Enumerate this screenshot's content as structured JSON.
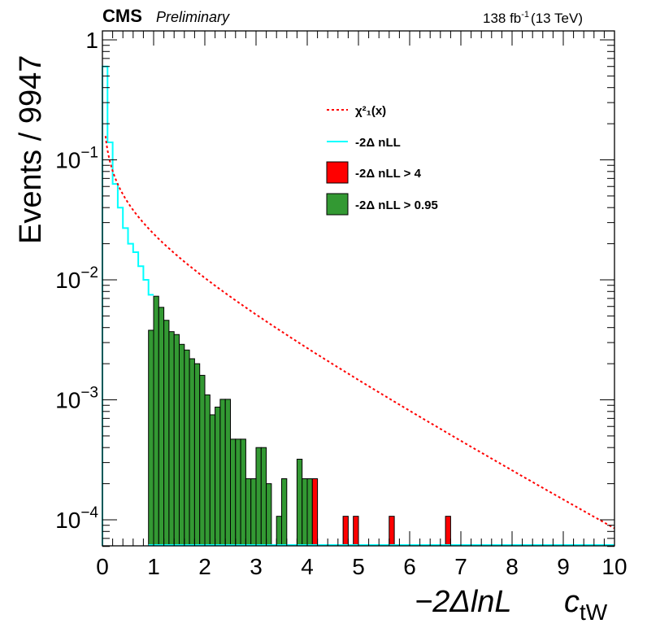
{
  "header": {
    "experiment": "CMS",
    "status": "Preliminary",
    "lumi": "138 fb",
    "lumi_exp": "-1",
    "energy": "(13 TeV)"
  },
  "chart_data": {
    "type": "histogram",
    "ylabel": "Events / 9947",
    "xlabel": "−2ΔlnL",
    "parameter_label": "c",
    "parameter_subscript": "tW",
    "xlim": [
      0,
      10
    ],
    "ylim": [
      5.5e-05,
      1.3
    ],
    "y_log_scale": true,
    "grid": false,
    "x_tick_labels": [
      "0",
      "1",
      "2",
      "3",
      "4",
      "5",
      "6",
      "7",
      "8",
      "9",
      "10"
    ],
    "y_tick_labels": [
      {
        "mantissa": "1",
        "exp": ""
      },
      {
        "mantissa": "10",
        "exp": "−1"
      },
      {
        "mantissa": "10",
        "exp": "−2"
      },
      {
        "mantissa": "10",
        "exp": "−3"
      },
      {
        "mantissa": "10",
        "exp": "−4"
      }
    ],
    "bin_width": 0.1,
    "legend": {
      "position": "top-center",
      "entries": [
        {
          "label": "χ²₁(x)",
          "style": "dashed-line",
          "color": "#ff0000"
        },
        {
          "label": "-2Δ nLL",
          "style": "line",
          "color": "#00ffff"
        },
        {
          "label": "-2Δ nLL > 4",
          "style": "fill",
          "color": "#ff0000"
        },
        {
          "label": "-2Δ nLL > 0.95",
          "style": "fill",
          "color": "#339933"
        }
      ]
    },
    "series": [
      {
        "name": "-2Δ nLL",
        "color": "#00ffff",
        "bins": [
          [
            0.0,
            0.6
          ],
          [
            0.1,
            0.14
          ],
          [
            0.2,
            0.063
          ],
          [
            0.3,
            0.04
          ],
          [
            0.4,
            0.027
          ],
          [
            0.5,
            0.02
          ],
          [
            0.6,
            0.017
          ],
          [
            0.7,
            0.013
          ],
          [
            0.8,
            0.01
          ],
          [
            0.9,
            0.0075
          ]
        ]
      },
      {
        "name": "-2Δ nLL > 0.95",
        "color": "#339933",
        "bins": [
          [
            0.9,
            0.0038
          ],
          [
            1.0,
            0.0073
          ],
          [
            1.1,
            0.0059
          ],
          [
            1.2,
            0.0046
          ],
          [
            1.3,
            0.0037
          ],
          [
            1.4,
            0.0035
          ],
          [
            1.5,
            0.0029
          ],
          [
            1.6,
            0.0026
          ],
          [
            1.7,
            0.0022
          ],
          [
            1.8,
            0.002
          ],
          [
            1.9,
            0.0016
          ],
          [
            2.0,
            0.0011
          ],
          [
            2.1,
            0.00075
          ],
          [
            2.2,
            0.00087
          ],
          [
            2.3,
            0.00101
          ],
          [
            2.4,
            0.00101
          ],
          [
            2.5,
            0.00047
          ],
          [
            2.6,
            0.00047
          ],
          [
            2.7,
            0.00047
          ],
          [
            2.8,
            0.00022
          ],
          [
            2.9,
            0.00022
          ],
          [
            3.0,
            0.0004
          ],
          [
            3.1,
            0.0004
          ],
          [
            3.2,
            0.0002
          ],
          [
            3.4,
            0.000107
          ],
          [
            3.5,
            0.00022
          ],
          [
            3.8,
            0.00032
          ],
          [
            3.9,
            0.00022
          ],
          [
            4.0,
            0.00022
          ]
        ]
      },
      {
        "name": "-2Δ nLL > 4",
        "color": "#ff0000",
        "bins": [
          [
            4.1,
            0.00022
          ],
          [
            4.7,
            0.000107
          ],
          [
            4.9,
            0.000107
          ],
          [
            5.6,
            0.000107
          ],
          [
            6.7,
            0.000107
          ]
        ]
      }
    ],
    "reference_curve": {
      "name": "χ²₁(x)",
      "color": "#ff0000",
      "style": "dashed"
    }
  }
}
